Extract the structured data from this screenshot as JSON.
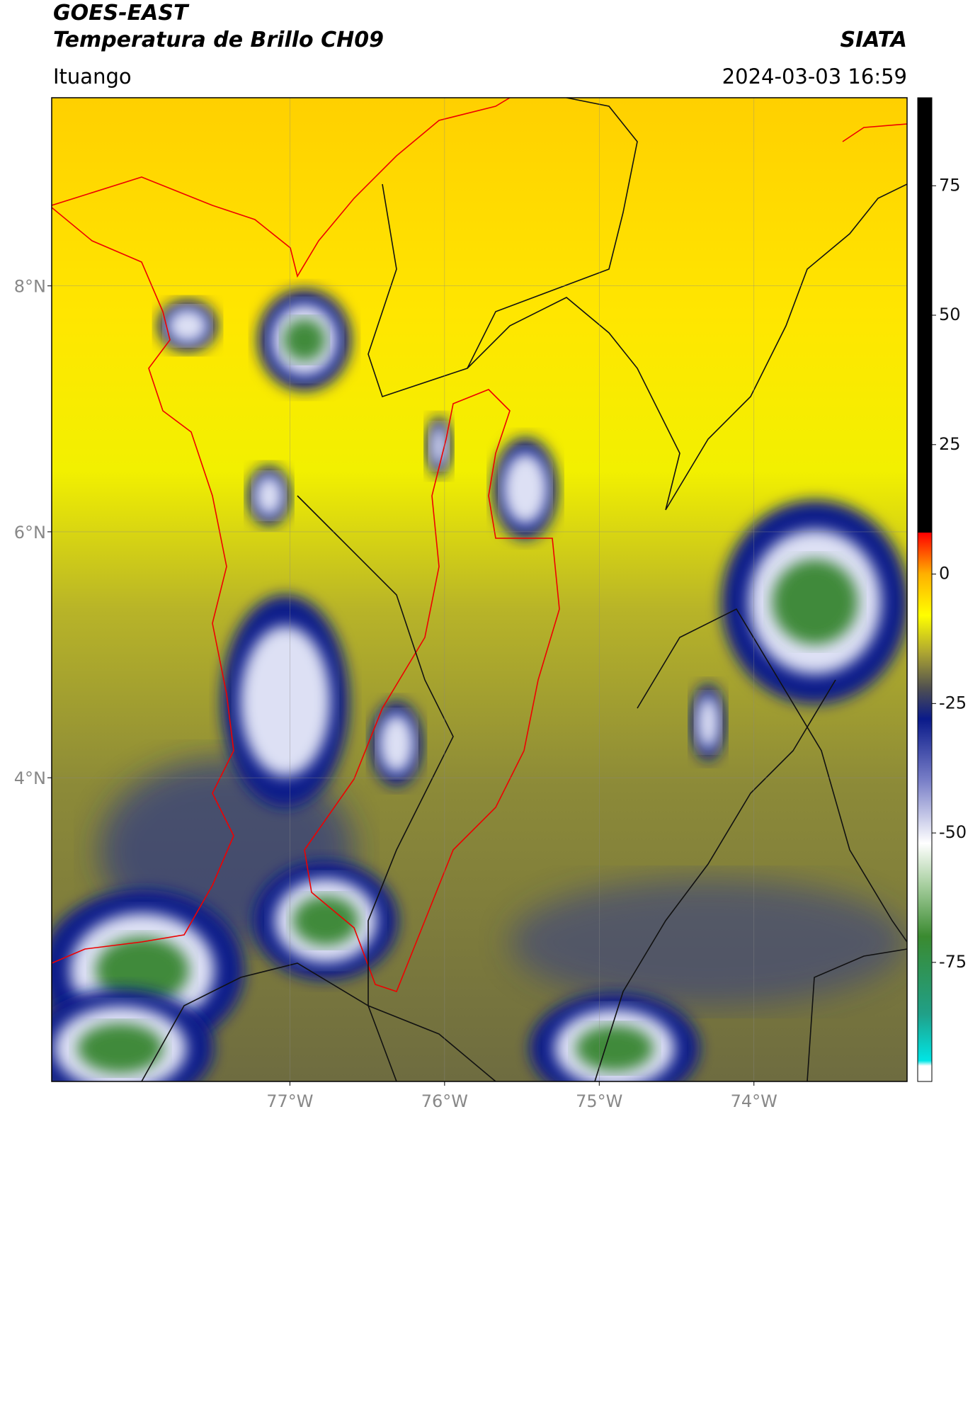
{
  "header": {
    "title": "GOES-EAST",
    "subtitle": "Temperatura de Brillo CH09",
    "source": "SIATA",
    "region": "Ituango",
    "datetime": "2024-03-03 16:59"
  },
  "map": {
    "xlim": [
      -78.54,
      -73.01
    ],
    "ylim": [
      1.53,
      9.53
    ],
    "xticks": [
      {
        "value": -77,
        "label": "77°W"
      },
      {
        "value": -76,
        "label": "76°W"
      },
      {
        "value": -75,
        "label": "75°W"
      },
      {
        "value": -74,
        "label": "74°W"
      }
    ],
    "yticks": [
      {
        "value": 4,
        "label": "4°N"
      },
      {
        "value": 6,
        "label": "6°N"
      },
      {
        "value": 8,
        "label": "8°N"
      }
    ],
    "grid": true
  },
  "colorbar": {
    "clim": [
      -98,
      92
    ],
    "ticks": [
      -75,
      -50,
      -25,
      0,
      25,
      50,
      75
    ],
    "colormap": [
      {
        "value": -98,
        "color": "#ffffff"
      },
      {
        "value": -95,
        "color": "#ffffff"
      },
      {
        "value": -94,
        "color": "#00e5e5"
      },
      {
        "value": -85,
        "color": "#20a088"
      },
      {
        "value": -70,
        "color": "#3a8a30"
      },
      {
        "value": -60,
        "color": "#a8cfa0"
      },
      {
        "value": -52,
        "color": "#ffffff"
      },
      {
        "value": -40,
        "color": "#7a80c8"
      },
      {
        "value": -28,
        "color": "#0a1a8a"
      },
      {
        "value": -22,
        "color": "#505050"
      },
      {
        "value": -15,
        "color": "#b0a830"
      },
      {
        "value": -8,
        "color": "#ffff00"
      },
      {
        "value": 0,
        "color": "#ffb000"
      },
      {
        "value": 8,
        "color": "#ff0000"
      },
      {
        "value": 8.01,
        "color": "#000000"
      },
      {
        "value": 92,
        "color": "#000000"
      }
    ]
  }
}
